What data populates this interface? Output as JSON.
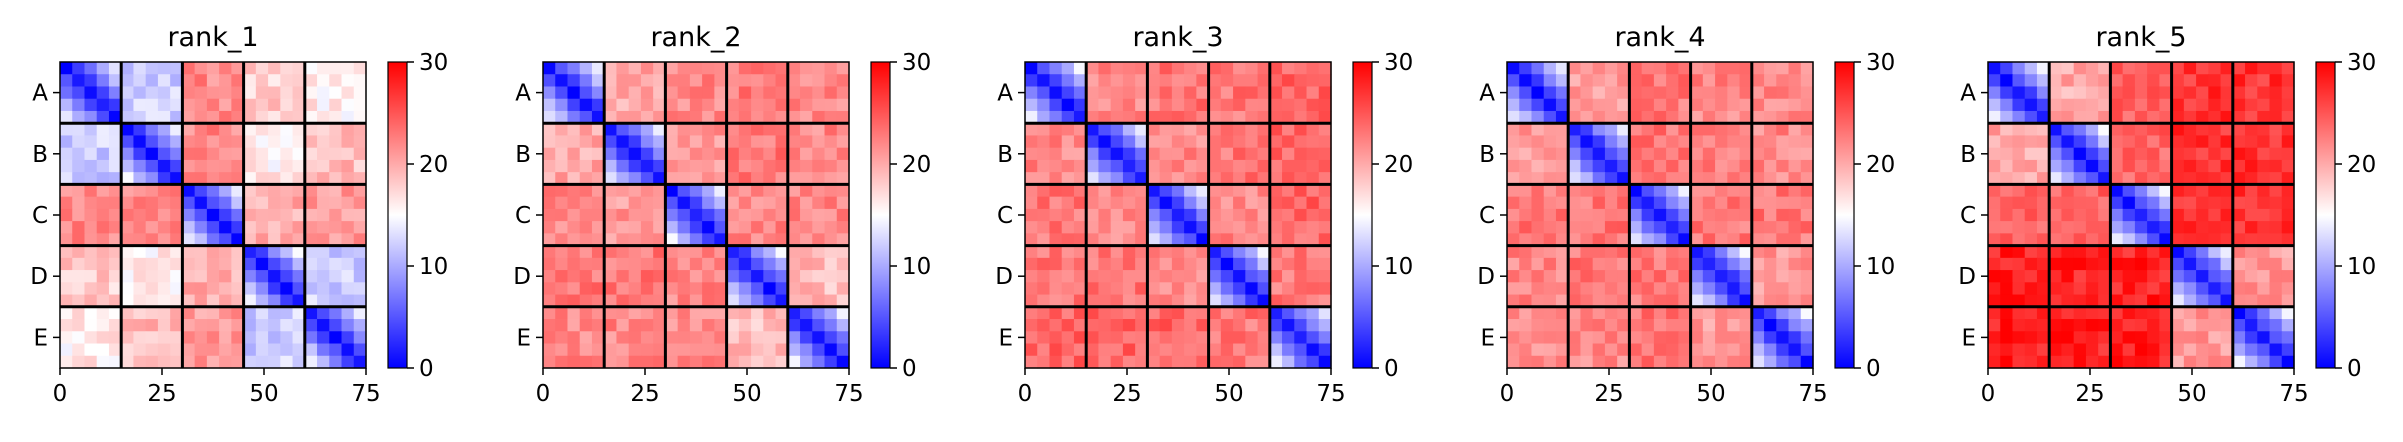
{
  "chart_data": [
    {
      "type": "heatmap",
      "title": "rank_1",
      "xlabel": "",
      "ylabel": "",
      "x_ticks": [
        0,
        25,
        50,
        75
      ],
      "y_tick_labels": [
        "A",
        "B",
        "C",
        "D",
        "E"
      ],
      "block_size": 15,
      "n": 75,
      "colormap": "bwr",
      "colorbar": {
        "range": [
          0,
          30
        ],
        "ticks": [
          0,
          10,
          20,
          30
        ]
      },
      "block_mean": [
        [
          4,
          12,
          22,
          18,
          16
        ],
        [
          12,
          4,
          22,
          16,
          19
        ],
        [
          22,
          22,
          4,
          20,
          21
        ],
        [
          18,
          16,
          20,
          4,
          12
        ],
        [
          16,
          19,
          21,
          12,
          4
        ]
      ]
    },
    {
      "type": "heatmap",
      "title": "rank_2",
      "xlabel": "",
      "ylabel": "",
      "x_ticks": [
        0,
        25,
        50,
        75
      ],
      "y_tick_labels": [
        "A",
        "B",
        "C",
        "D",
        "E"
      ],
      "block_size": 15,
      "n": 75,
      "colormap": "bwr",
      "colorbar": {
        "range": [
          0,
          30
        ],
        "ticks": [
          0,
          10,
          20,
          30
        ]
      },
      "block_mean": [
        [
          4,
          20,
          22,
          23,
          22
        ],
        [
          20,
          4,
          21,
          23,
          22
        ],
        [
          22,
          21,
          4,
          22,
          22
        ],
        [
          23,
          23,
          22,
          4,
          19
        ],
        [
          22,
          22,
          22,
          19,
          4
        ]
      ]
    },
    {
      "type": "heatmap",
      "title": "rank_3",
      "xlabel": "",
      "ylabel": "",
      "x_ticks": [
        0,
        25,
        50,
        75
      ],
      "y_tick_labels": [
        "A",
        "B",
        "C",
        "D",
        "E"
      ],
      "block_size": 15,
      "n": 75,
      "colormap": "bwr",
      "colorbar": {
        "range": [
          0,
          30
        ],
        "ticks": [
          0,
          10,
          20,
          30
        ]
      },
      "block_mean": [
        [
          4,
          22,
          23,
          23,
          24
        ],
        [
          22,
          4,
          22,
          23,
          24
        ],
        [
          23,
          22,
          4,
          22,
          24
        ],
        [
          23,
          23,
          22,
          4,
          23
        ],
        [
          24,
          24,
          24,
          23,
          4
        ]
      ]
    },
    {
      "type": "heatmap",
      "title": "rank_4",
      "xlabel": "",
      "ylabel": "",
      "x_ticks": [
        0,
        25,
        50,
        75
      ],
      "y_tick_labels": [
        "A",
        "B",
        "C",
        "D",
        "E"
      ],
      "block_size": 15,
      "n": 75,
      "colormap": "bwr",
      "colorbar": {
        "range": [
          0,
          30
        ],
        "ticks": [
          0,
          10,
          20,
          30
        ]
      },
      "block_mean": [
        [
          4,
          21,
          23,
          22,
          22
        ],
        [
          21,
          4,
          23,
          23,
          22
        ],
        [
          23,
          23,
          4,
          23,
          23
        ],
        [
          22,
          23,
          23,
          4,
          21
        ],
        [
          22,
          22,
          23,
          21,
          4
        ]
      ]
    },
    {
      "type": "heatmap",
      "title": "rank_5",
      "xlabel": "",
      "ylabel": "",
      "x_ticks": [
        0,
        25,
        50,
        75
      ],
      "y_tick_labels": [
        "A",
        "B",
        "C",
        "D",
        "E"
      ],
      "block_size": 15,
      "n": 75,
      "colormap": "bwr",
      "colorbar": {
        "range": [
          0,
          30
        ],
        "ticks": [
          0,
          10,
          20,
          30
        ]
      },
      "block_mean": [
        [
          4,
          20,
          24,
          27,
          27
        ],
        [
          20,
          4,
          24,
          27,
          27
        ],
        [
          24,
          24,
          4,
          27,
          27
        ],
        [
          28,
          28,
          28,
          4,
          21
        ],
        [
          28,
          28,
          28,
          21,
          4
        ]
      ]
    }
  ]
}
